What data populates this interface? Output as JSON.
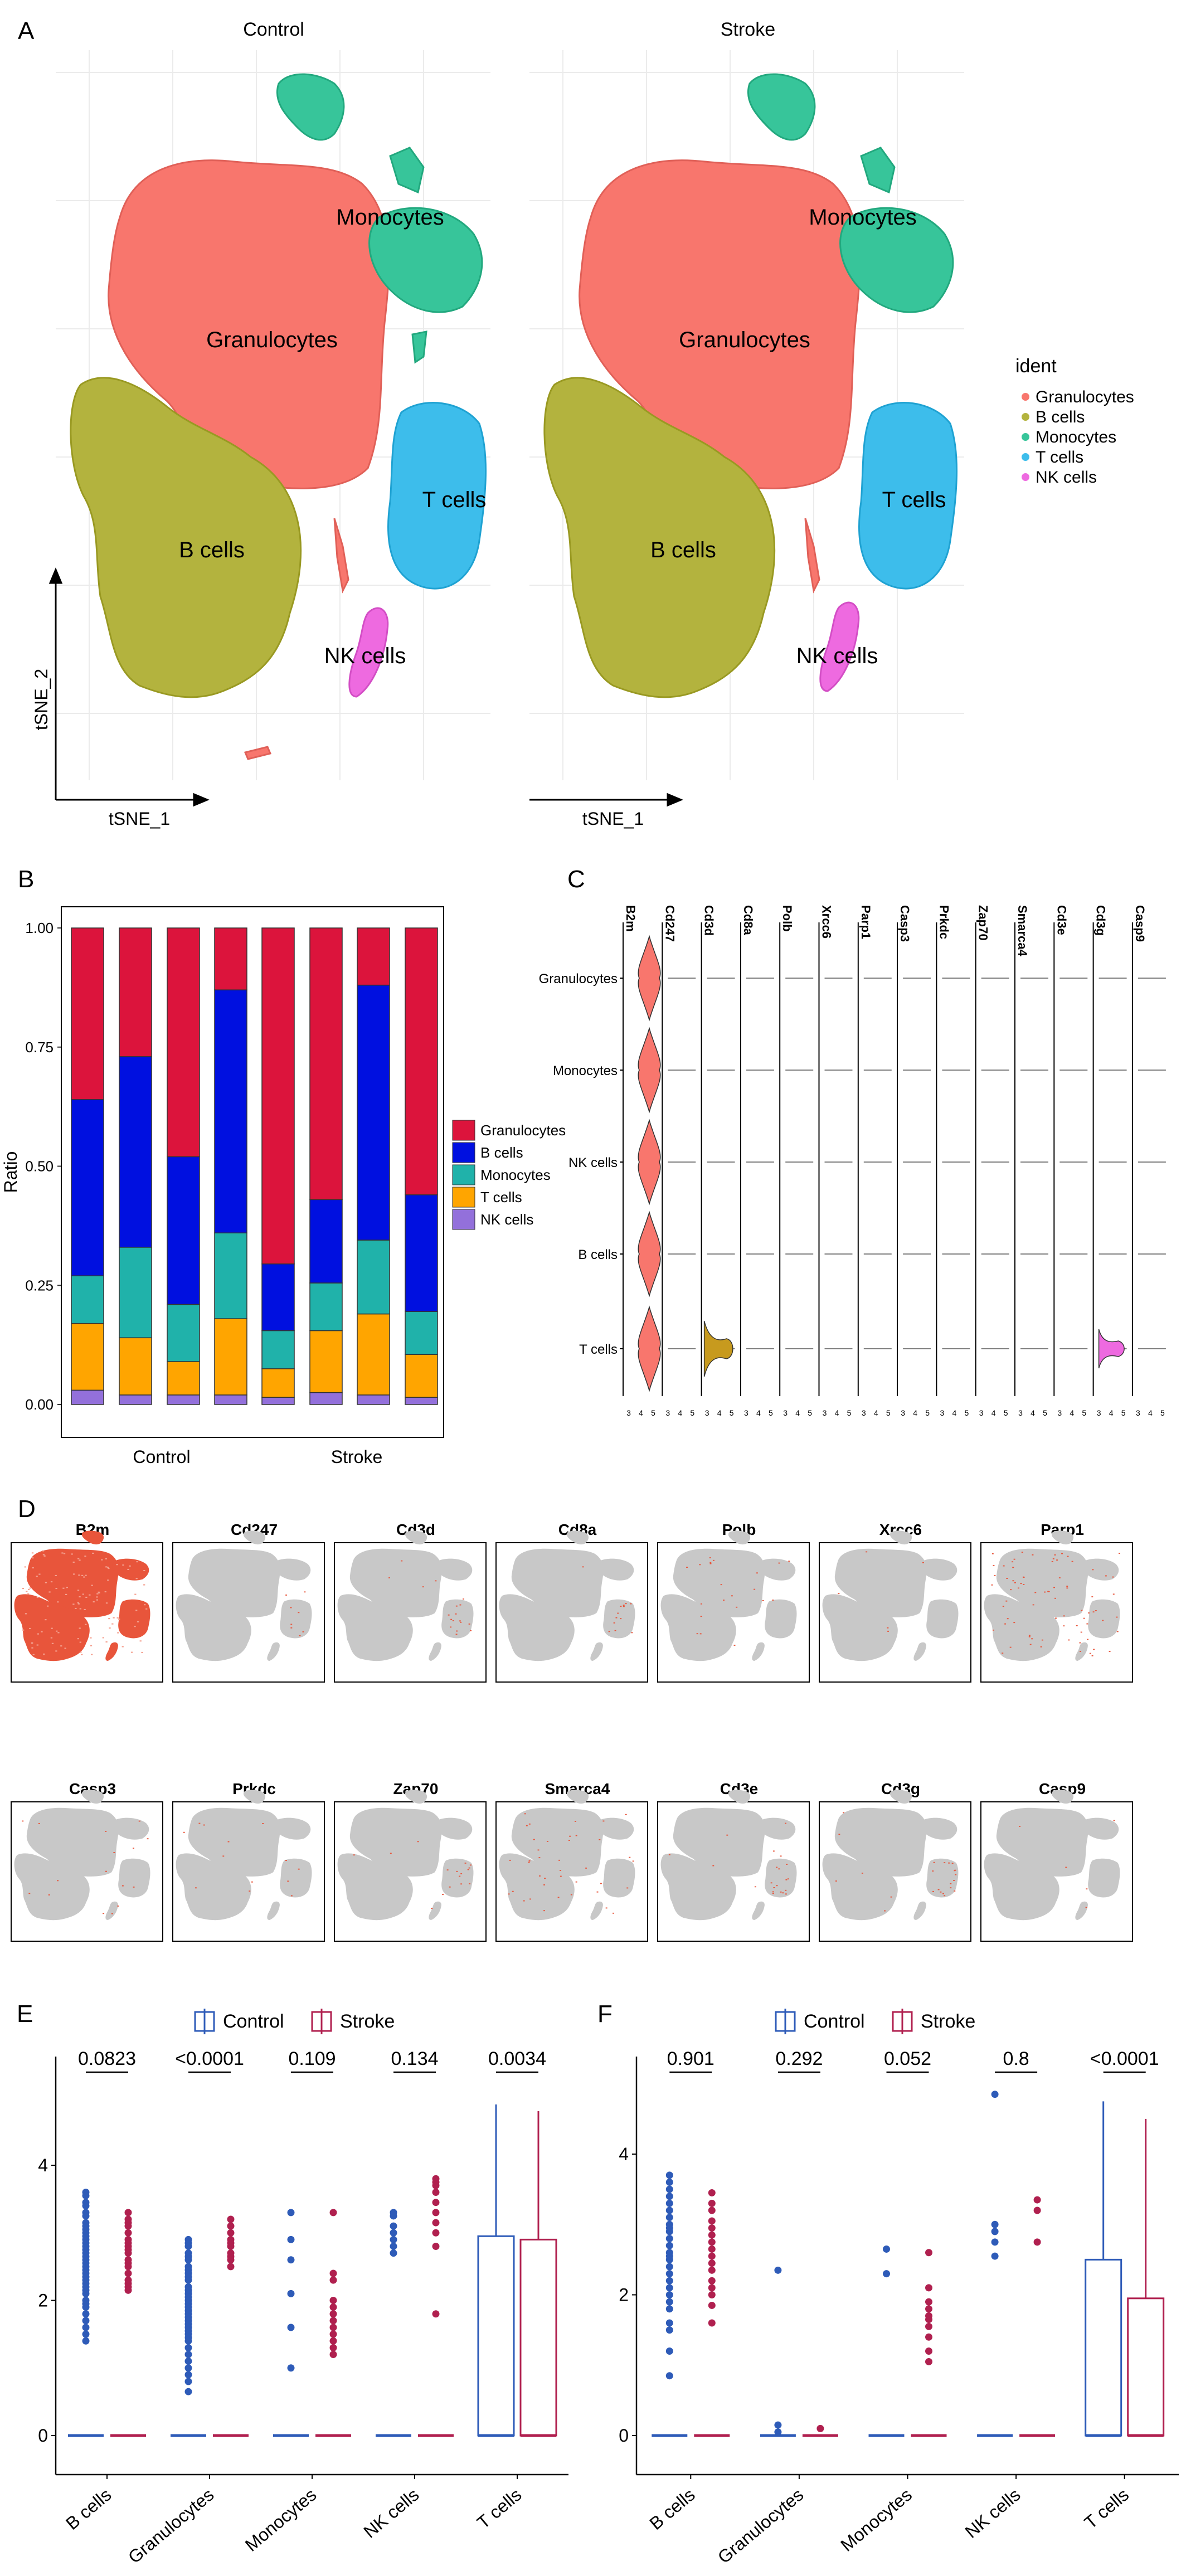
{
  "panel_letters": [
    "A",
    "B",
    "C",
    "D",
    "E",
    "F"
  ],
  "colors": {
    "granulocytes": "#F8766D",
    "b_cells": "#B3B33E",
    "monocytes": "#37C59A",
    "t_cells": "#3DBDEB",
    "nk_cells": "#EE6AE0",
    "bar_gran": "#DC143C",
    "bar_b": "#0010E0",
    "bar_mono": "#20B2AA",
    "bar_t": "#FFA500",
    "bar_nk": "#9370DB",
    "control": "#2E5BB8",
    "stroke": "#B0204F",
    "feature": "#E8553B",
    "grey": "#C8C8C8"
  },
  "panelA": {
    "facets": [
      "Control",
      "Stroke"
    ],
    "xlabel": "tSNE_1",
    "ylabel": "tSNE_2",
    "cluster_labels": [
      "Granulocytes",
      "Monocytes",
      "B cells",
      "T cells",
      "NK cells"
    ],
    "legend_title": "ident",
    "legend": [
      "Granulocytes",
      "B cells",
      "Monocytes",
      "T cells",
      "NK cells"
    ]
  },
  "panelC": {
    "genes": [
      "B2m",
      "Cd247",
      "Cd3d",
      "Cd8a",
      "Polb",
      "Xrcc6",
      "Parp1",
      "Casp3",
      "Prkdc",
      "Zap70",
      "Smarca4",
      "Cd3e",
      "Cd3g",
      "Casp9"
    ],
    "celltypes": [
      "Granulocytes",
      "Monocytes",
      "NK cells",
      "B cells",
      "T cells"
    ]
  },
  "panelD": {
    "genes_row1": [
      "B2m",
      "Cd247",
      "Cd3d",
      "Cd8a",
      "Polb",
      "Xrcc6",
      "Parp1"
    ],
    "genes_row2": [
      "Casp3",
      "Prkdc",
      "Zap70",
      "Smarca4",
      "Cd3e",
      "Cd3g",
      "Casp9"
    ]
  },
  "chart_data": [
    {
      "type": "bar",
      "panel": "B",
      "stacked": true,
      "ylabel": "Ratio",
      "ylim": [
        0,
        1
      ],
      "yticks": [
        "0.00",
        "0.25",
        "0.50",
        "0.75",
        "1.00"
      ],
      "group_labels": [
        "Control",
        "Stroke"
      ],
      "legend": [
        "Granulocytes",
        "B cells",
        "Monocytes",
        "T cells",
        "NK cells"
      ],
      "bars": [
        {
          "nk": 0.03,
          "t": 0.14,
          "mono": 0.1,
          "b": 0.37,
          "gran": 0.36
        },
        {
          "nk": 0.02,
          "t": 0.12,
          "mono": 0.19,
          "b": 0.4,
          "gran": 0.27
        },
        {
          "nk": 0.02,
          "t": 0.07,
          "mono": 0.12,
          "b": 0.31,
          "gran": 0.48
        },
        {
          "nk": 0.02,
          "t": 0.16,
          "mono": 0.18,
          "b": 0.51,
          "gran": 0.13
        },
        {
          "nk": 0.015,
          "t": 0.06,
          "mono": 0.08,
          "b": 0.14,
          "gran": 0.705
        },
        {
          "nk": 0.025,
          "t": 0.13,
          "mono": 0.1,
          "b": 0.175,
          "gran": 0.57
        },
        {
          "nk": 0.02,
          "t": 0.17,
          "mono": 0.155,
          "b": 0.535,
          "gran": 0.12
        },
        {
          "nk": 0.015,
          "t": 0.09,
          "mono": 0.09,
          "b": 0.245,
          "gran": 0.56
        }
      ]
    },
    {
      "type": "box",
      "panel": "E",
      "legend": [
        "Control",
        "Stroke"
      ],
      "categories": [
        "B cells",
        "Granulocytes",
        "Monocytes",
        "NK cells",
        "T cells"
      ],
      "yticks": [
        0,
        2,
        4
      ],
      "ylim": [
        -0.25,
        5.2
      ],
      "pvalues": [
        "0.0823",
        "<0.0001",
        "0.109",
        "0.134",
        "0.0034"
      ],
      "boxes": {
        "control": [
          {
            "q1": 0,
            "med": 0,
            "q3": 0
          },
          {
            "q1": 0,
            "med": 0,
            "q3": 0
          },
          {
            "q1": 0,
            "med": 0,
            "q3": 0
          },
          {
            "q1": 0,
            "med": 0,
            "q3": 0
          },
          {
            "q1": 0,
            "med": 0,
            "q3": 2.95,
            "max": 4.9
          }
        ],
        "stroke": [
          {
            "q1": 0,
            "med": 0,
            "q3": 0
          },
          {
            "q1": 0,
            "med": 0,
            "q3": 0
          },
          {
            "q1": 0,
            "med": 0,
            "q3": 0
          },
          {
            "q1": 0,
            "med": 0,
            "q3": 0
          },
          {
            "q1": 0,
            "med": 0,
            "q3": 2.9,
            "max": 4.8
          }
        ]
      },
      "outliers": {
        "control": [
          [
            3.6,
            3.55,
            3.45,
            3.4,
            3.3,
            3.25,
            3.15,
            3.1,
            3.05,
            3.0,
            2.95,
            2.9,
            2.85,
            2.8,
            2.75,
            2.7,
            2.65,
            2.6,
            2.55,
            2.5,
            2.45,
            2.4,
            2.35,
            2.3,
            2.25,
            2.2,
            2.15,
            2.1,
            2.0,
            1.95,
            1.9,
            1.8,
            1.7,
            1.6,
            1.5,
            1.4
          ],
          [
            2.9,
            2.85,
            2.8,
            2.7,
            2.65,
            2.6,
            2.5,
            2.45,
            2.4,
            2.35,
            2.3,
            2.2,
            2.15,
            2.1,
            2.05,
            2.0,
            1.95,
            1.9,
            1.85,
            1.8,
            1.75,
            1.7,
            1.65,
            1.6,
            1.55,
            1.5,
            1.45,
            1.4,
            1.3,
            1.2,
            1.1,
            1.0,
            0.9,
            0.8,
            0.65
          ],
          [
            3.3,
            2.9,
            2.6,
            2.1,
            1.6,
            1.0
          ],
          [
            3.3,
            3.25,
            3.1,
            3.0,
            2.9,
            2.8,
            2.7
          ],
          []
        ],
        "stroke": [
          [
            3.3,
            3.2,
            3.15,
            3.1,
            3.0,
            2.9,
            2.85,
            2.8,
            2.75,
            2.7,
            2.6,
            2.55,
            2.5,
            2.4,
            2.3,
            2.25,
            2.2,
            2.15
          ],
          [
            3.2,
            3.1,
            3.0,
            2.9,
            2.85,
            2.8,
            2.7,
            2.65,
            2.6,
            2.5
          ],
          [
            3.3,
            2.4,
            2.3,
            2.0,
            1.9,
            1.8,
            1.7,
            1.6,
            1.5,
            1.4,
            1.3,
            1.2
          ],
          [
            3.8,
            3.75,
            3.7,
            3.6,
            3.45,
            3.3,
            3.15,
            3.0,
            2.8,
            1.8
          ],
          []
        ]
      }
    },
    {
      "type": "box",
      "panel": "F",
      "legend": [
        "Control",
        "Stroke"
      ],
      "categories": [
        "B cells",
        "Granulocytes",
        "Monocytes",
        "NK cells",
        "T cells"
      ],
      "yticks": [
        0,
        2,
        4
      ],
      "ylim": [
        -0.25,
        5.15
      ],
      "pvalues": [
        "0.901",
        "0.292",
        "0.052",
        "0.8",
        "<0.0001"
      ],
      "boxes": {
        "control": [
          {
            "q1": 0,
            "med": 0,
            "q3": 0
          },
          {
            "q1": 0,
            "med": 0,
            "q3": 0
          },
          {
            "q1": 0,
            "med": 0,
            "q3": 0
          },
          {
            "q1": 0,
            "med": 0,
            "q3": 0
          },
          {
            "q1": 0,
            "med": 0,
            "q3": 2.5,
            "max": 4.75
          }
        ],
        "stroke": [
          {
            "q1": 0,
            "med": 0,
            "q3": 0
          },
          {
            "q1": 0,
            "med": 0,
            "q3": 0
          },
          {
            "q1": 0,
            "med": 0,
            "q3": 0
          },
          {
            "q1": 0,
            "med": 0,
            "q3": 0
          },
          {
            "q1": 0,
            "med": 0,
            "q3": 1.95,
            "max": 4.5
          }
        ]
      },
      "outliers": {
        "control": [
          [
            3.7,
            3.6,
            3.5,
            3.4,
            3.3,
            3.2,
            3.1,
            3.0,
            2.95,
            2.9,
            2.8,
            2.7,
            2.6,
            2.55,
            2.5,
            2.4,
            2.3,
            2.2,
            2.1,
            2.0,
            1.9,
            1.8,
            1.6,
            1.5,
            1.2,
            0.85
          ],
          [
            2.35,
            0.15,
            0.05
          ],
          [
            2.65,
            2.3
          ],
          [
            4.85,
            3.0,
            2.9,
            2.75,
            2.55
          ],
          []
        ],
        "stroke": [
          [
            3.45,
            3.3,
            3.2,
            3.05,
            2.95,
            2.85,
            2.75,
            2.65,
            2.55,
            2.45,
            2.35,
            2.2,
            2.1,
            2.0,
            1.85,
            1.6
          ],
          [
            0.1
          ],
          [
            2.6,
            2.1,
            1.9,
            1.8,
            1.7,
            1.65,
            1.55,
            1.4,
            1.2,
            1.05
          ],
          [
            3.35,
            3.2,
            2.75
          ],
          []
        ]
      }
    }
  ]
}
